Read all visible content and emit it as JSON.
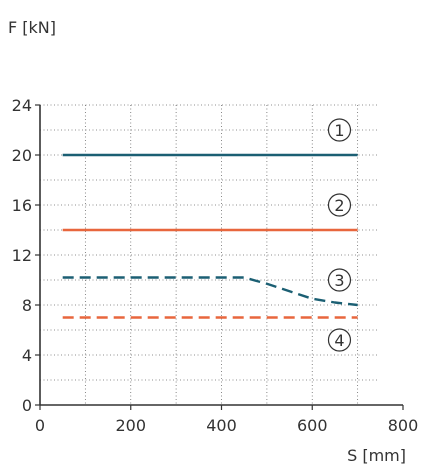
{
  "chart_data": {
    "type": "line",
    "title": "",
    "xlabel": "S [mm]",
    "ylabel": "F [kN]",
    "xlim": [
      0,
      800
    ],
    "ylim": [
      0,
      24
    ],
    "xticks": [
      0,
      200,
      400,
      600,
      800
    ],
    "yticks": [
      0,
      4,
      8,
      12,
      16,
      20,
      24
    ],
    "grid": true,
    "grid_style": "dotted",
    "series": [
      {
        "marker": "1",
        "color": "#1b5f73",
        "style": "solid",
        "x": [
          50,
          700
        ],
        "y": [
          20,
          20
        ]
      },
      {
        "marker": "2",
        "color": "#e8663d",
        "style": "solid",
        "x": [
          50,
          700
        ],
        "y": [
          14,
          14
        ]
      },
      {
        "marker": "3",
        "color": "#1b5f73",
        "style": "dashed",
        "x": [
          50,
          450,
          500,
          550,
          600,
          650,
          700
        ],
        "y": [
          10.2,
          10.2,
          9.7,
          9.1,
          8.5,
          8.2,
          8.0
        ]
      },
      {
        "marker": "4",
        "color": "#e8663d",
        "style": "dashed",
        "x": [
          50,
          700
        ],
        "y": [
          7,
          7
        ]
      }
    ]
  }
}
